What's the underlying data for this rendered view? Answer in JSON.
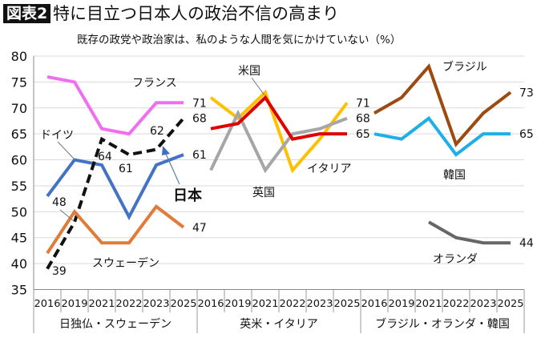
{
  "header": {
    "badge": "図表2",
    "title": "特に目立つ日本人の政治不信の高まり",
    "subtitle": "既存の政党や政治家は、私のような人間を気にかけていない（%）"
  },
  "chart_data": {
    "type": "line",
    "ylim": [
      35,
      80
    ],
    "yticks": [
      35,
      40,
      45,
      50,
      55,
      60,
      65,
      70,
      75,
      80
    ],
    "grid": true,
    "years": [
      "2016",
      "2019",
      "2021",
      "2022",
      "2023",
      "2025"
    ],
    "panels": [
      {
        "label": "日独仏・スウェーデン",
        "series": [
          {
            "name": "フランス",
            "color": "#f06ef0",
            "values": [
              76,
              75,
              66,
              65,
              71,
              71
            ],
            "end_label": "71"
          },
          {
            "name": "ドイツ",
            "color": "#4472c4",
            "values": [
              53,
              60,
              59,
              49,
              59,
              61
            ],
            "end_label": "61"
          },
          {
            "name": "日本",
            "color": "#111111",
            "dashed": true,
            "values": [
              39,
              48,
              64,
              61,
              62,
              68
            ],
            "end_label": "68",
            "point_labels": [
              "39",
              "48",
              "64",
              "61",
              "62"
            ]
          },
          {
            "name": "スウェーデン",
            "color": "#e07b39",
            "values": [
              42,
              50,
              44,
              44,
              51,
              47
            ],
            "end_label": "47"
          }
        ]
      },
      {
        "label": "英米・イタリア",
        "series": [
          {
            "name": "イタリア",
            "color": "#ffc000",
            "values": [
              72,
              68,
              73,
              58,
              64,
              71
            ],
            "end_label": "71"
          },
          {
            "name": "英国",
            "color": "#a6a6a6",
            "values": [
              58,
              69,
              58,
              65,
              66,
              68
            ],
            "end_label": "68"
          },
          {
            "name": "米国",
            "color": "#e00000",
            "values": [
              66,
              67,
              72,
              64,
              65,
              65
            ],
            "end_label": "65"
          }
        ]
      },
      {
        "label": "ブラジル・オランダ・韓国",
        "series": [
          {
            "name": "ブラジル",
            "color": "#9c4a10",
            "values": [
              69,
              72,
              78,
              63,
              69,
              73
            ],
            "end_label": "73"
          },
          {
            "name": "韓国",
            "color": "#1eaee8",
            "values": [
              65,
              64,
              68,
              61,
              65,
              65
            ],
            "end_label": "65"
          },
          {
            "name": "オランダ",
            "color": "#666666",
            "values": [
              null,
              null,
              48,
              45,
              44,
              44
            ],
            "end_label": "44"
          }
        ]
      }
    ]
  }
}
